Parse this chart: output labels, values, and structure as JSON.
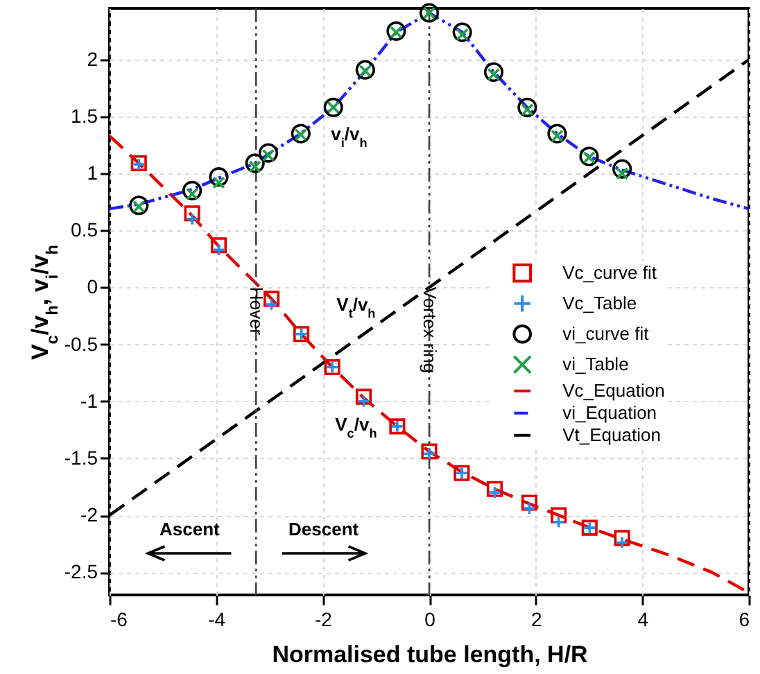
{
  "chart_data": {
    "type": "scatter",
    "xlabel": "Normalised tube length, H/R",
    "ylabel": "V$_{c}$/v$_{h}$, v$_{i}$/v$_{h}$",
    "xlim": [
      -6,
      6
    ],
    "ylim": [
      -2.7,
      2.45
    ],
    "xticks": [
      -6,
      -4,
      -2,
      0,
      2,
      4,
      6
    ],
    "yticks": [
      -2.5,
      -2,
      -1.5,
      -1,
      -0.5,
      0,
      0.5,
      1,
      1.5,
      2
    ],
    "grid": true,
    "legend": "right",
    "series": [
      {
        "name": "Vc_curve fit",
        "marker": "square",
        "color": "#e00000",
        "x": [
          -5.45,
          -4.45,
          -3.95,
          -2.96,
          -2.4,
          -1.82,
          -1.23,
          -0.6,
          0,
          0.61,
          1.23,
          1.88,
          2.43,
          3.01,
          3.62
        ],
        "values": [
          1.09,
          0.65,
          0.37,
          -0.1,
          -0.41,
          -0.7,
          -0.96,
          -1.22,
          -1.44,
          -1.63,
          -1.77,
          -1.89,
          -2.0,
          -2.11,
          -2.2
        ]
      },
      {
        "name": "Vc_Table",
        "marker": "plus",
        "color": "#2b8cee",
        "x": [
          -5.45,
          -4.45,
          -3.95,
          -2.96,
          -2.4,
          -1.82,
          -1.23,
          -0.6,
          0,
          0.61,
          1.23,
          1.88,
          2.43,
          3.01,
          3.62
        ],
        "values": [
          1.08,
          0.6,
          0.33,
          -0.15,
          -0.41,
          -0.7,
          -1.0,
          -1.22,
          -1.46,
          -1.63,
          -1.8,
          -1.94,
          -2.06,
          -2.11,
          -2.24
        ]
      },
      {
        "name": "vi_curve fit",
        "marker": "circle",
        "color": "#000000",
        "x": [
          -5.45,
          -4.45,
          -3.95,
          -3.27,
          -3.02,
          -2.41,
          -1.8,
          -1.2,
          -0.62,
          0,
          0.62,
          1.21,
          1.84,
          2.4,
          3.0,
          3.62
        ],
        "values": [
          0.72,
          0.85,
          0.97,
          1.09,
          1.18,
          1.35,
          1.58,
          1.91,
          2.25,
          2.41,
          2.24,
          1.89,
          1.58,
          1.35,
          1.15,
          1.04
        ]
      },
      {
        "name": "vi_Table",
        "marker": "cross",
        "color": "#1fa045",
        "x": [
          -5.45,
          -4.45,
          -3.95,
          -3.27,
          -3.02,
          -2.41,
          -1.8,
          -1.2,
          -0.62,
          0,
          0.62,
          1.21,
          1.84,
          2.4,
          3.0,
          3.62
        ],
        "values": [
          0.71,
          0.82,
          0.92,
          1.06,
          1.16,
          1.34,
          1.58,
          1.9,
          2.24,
          2.41,
          2.22,
          1.87,
          1.56,
          1.33,
          1.14,
          1.0
        ]
      },
      {
        "name": "Vc_Equation",
        "type": "line",
        "line_style": "dashed",
        "marker": "none",
        "color": "#e00000",
        "x": [
          -6,
          -5.45,
          -4.45,
          -3.95,
          -2.96,
          -2.4,
          -1.82,
          -1.23,
          -0.6,
          0,
          0.61,
          1.23,
          1.88,
          2.43,
          3.01,
          3.62,
          4.5,
          5.3,
          6
        ],
        "values": [
          1.33,
          1.09,
          0.63,
          0.36,
          -0.1,
          -0.41,
          -0.7,
          -0.97,
          -1.22,
          -1.44,
          -1.62,
          -1.77,
          -1.9,
          -2.0,
          -2.11,
          -2.21,
          -2.35,
          -2.5,
          -2.68
        ]
      },
      {
        "name": "vi_Equation",
        "type": "line",
        "line_style": "dotted",
        "marker": "none",
        "color": "#2222ee",
        "x": [
          -6,
          -5.45,
          -4.45,
          -3.95,
          -3.27,
          -3.02,
          -2.41,
          -1.8,
          -1.2,
          -0.62,
          0,
          0.62,
          1.21,
          1.84,
          2.4,
          3.0,
          3.62,
          4.5,
          5.3,
          6
        ],
        "values": [
          0.69,
          0.73,
          0.86,
          0.96,
          1.09,
          1.17,
          1.35,
          1.58,
          1.9,
          2.24,
          2.41,
          2.24,
          1.89,
          1.58,
          1.35,
          1.15,
          1.03,
          0.9,
          0.78,
          0.69
        ]
      },
      {
        "name": "Vt_Equation",
        "type": "line",
        "line_style": "dashed",
        "marker": "none",
        "color": "#000000",
        "x": [
          -6,
          6
        ],
        "values": [
          -2.0,
          2.0
        ]
      }
    ],
    "ref_lines": [
      {
        "axis": "x",
        "value": -3.25,
        "label": "Hover",
        "color": "#444444",
        "line_style": "dotted"
      },
      {
        "axis": "x",
        "value": 0,
        "label": "Vortex ring",
        "color": "#444444",
        "line_style": "dotted"
      }
    ],
    "annotations": [
      "v$_{i}$/v$_{h}$",
      "V$_{t}$/v$_{h}$",
      "V$_{c}$/v$_{h}$",
      "Ascent",
      "Descent"
    ]
  }
}
